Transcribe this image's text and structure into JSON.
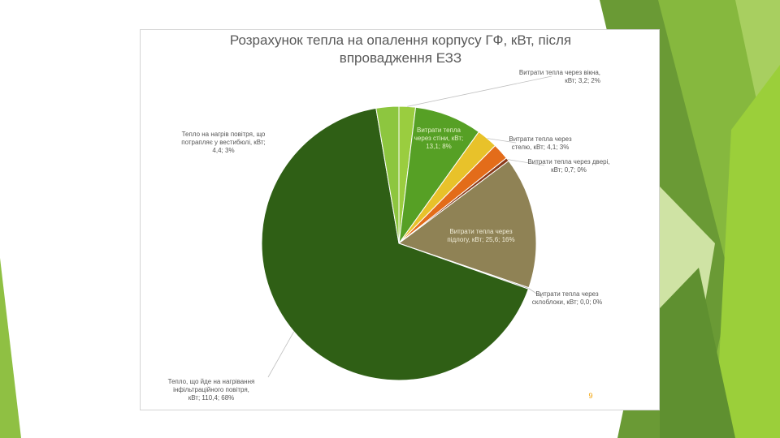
{
  "slide": {
    "number": "9",
    "colors": {
      "accent_light": "#9bc54b",
      "accent_mid": "#7cae3c",
      "accent_dark": "#5b8a2f",
      "accent_pale": "#cfe3a4"
    }
  },
  "chart_data": {
    "type": "pie",
    "title": "Розрахунок тепла на опалення корпусу ГФ, кВт, після\nвпровадження ЕЗЗ",
    "units": "кВт",
    "slices": [
      {
        "label": "Витрати тепла через вікна, кВт; 3,2; 2%",
        "value": 3.2,
        "percent": 2,
        "color": "#9acd3f",
        "text_color": "#555555"
      },
      {
        "label": "Витрати тепла через стіни, кВт; 13,1; 8%",
        "value": 13.1,
        "percent": 8,
        "color": "#56a025",
        "text_color": "#e4f0c8"
      },
      {
        "label": "Витрати тепла через стелю, кВт; 4,1; 3%",
        "value": 4.1,
        "percent": 3,
        "color": "#e8c22a",
        "text_color": "#555555"
      },
      {
        "label": "Витрати тепла через двері, кВт; 0,7; 0%",
        "value": 0.7,
        "percent": 0,
        "color": "#8b3a1a",
        "text_color": "#555555"
      },
      {
        "label": "Витрати тепла через підлогу, кВт; 25,6; 16%",
        "value": 25.6,
        "percent": 16,
        "color": "#8f8255",
        "text_color": "#f0ecd8"
      },
      {
        "label": "Витрати тепла через склоблоки, кВт; 0,0; 0%",
        "value": 0.0,
        "percent": 0,
        "color": "#7d7d7d",
        "text_color": "#555555"
      },
      {
        "label": "Тепло, що йде на нагрівання інфільтраційного повітря, кВт; 110,4; 68%",
        "value": 110.4,
        "percent": 68,
        "color": "#2f5f15",
        "text_color": "#555555"
      },
      {
        "label": "Тепло на нагрів повітря, що потрапляє у вестибюлі, кВт; 4,4; 3%",
        "value": 4.4,
        "percent": 3,
        "color": "#8dc63f",
        "text_color": "#555555"
      }
    ],
    "extra_slice": {
      "value": 3.2,
      "color": "#e36c1a"
    }
  }
}
